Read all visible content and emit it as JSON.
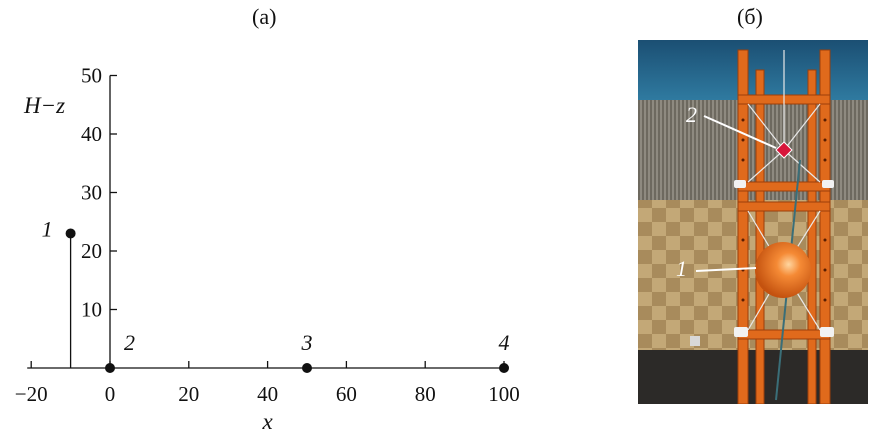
{
  "panel_a": {
    "label": "(a)"
  },
  "panel_b": {
    "label": "(б)"
  },
  "chart_data": {
    "type": "scatter",
    "xlabel": "x",
    "ylabel": "H−z",
    "xlim": [
      -20,
      100
    ],
    "ylim": [
      0,
      50
    ],
    "x_ticks": [
      -20,
      0,
      20,
      40,
      60,
      80,
      100
    ],
    "x_tick_labels": [
      "−20",
      "0",
      "20",
      "40",
      "60",
      "80",
      "100"
    ],
    "y_ticks": [
      10,
      20,
      30,
      40,
      50
    ],
    "y_tick_labels": [
      "10",
      "20",
      "30",
      "40",
      "50"
    ],
    "points": [
      {
        "label": "1",
        "x": -10,
        "y": 23,
        "stem": true
      },
      {
        "label": "2",
        "x": 0,
        "y": 0,
        "stem": false
      },
      {
        "label": "3",
        "x": 50,
        "y": 0,
        "stem": false
      },
      {
        "label": "4",
        "x": 100,
        "y": 0,
        "stem": false
      }
    ]
  },
  "photo": {
    "labels": [
      "2",
      "1"
    ],
    "colors": {
      "frame": "#e06a1c",
      "ceiling": "#1f5e86",
      "walls": "#a88c5e",
      "sphere": "#f07a26",
      "marker": "#d8143a"
    }
  }
}
